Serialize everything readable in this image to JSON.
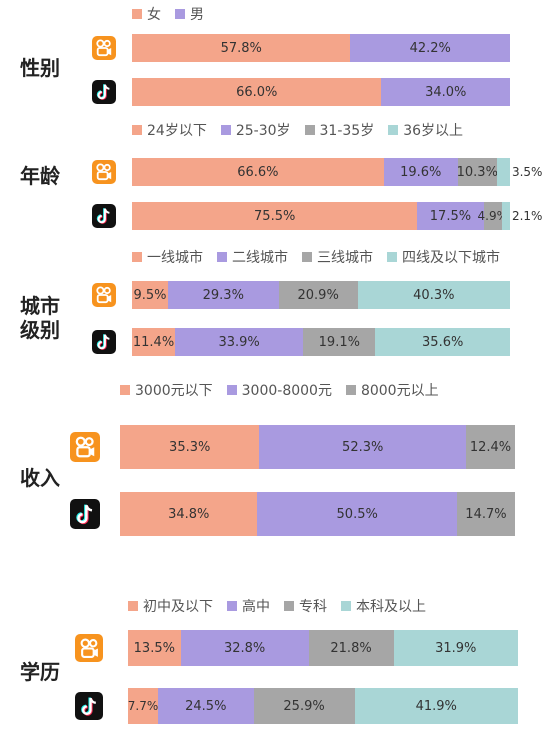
{
  "chart_data": [
    {
      "type": "bar",
      "orientation": "horizontal-stacked-100",
      "title": "性别",
      "categories": [
        "快手",
        "抖音"
      ],
      "colors": [
        "#f4a58a",
        "#a99ae0"
      ],
      "series": [
        {
          "name": "女",
          "values": [
            57.8,
            66.0
          ],
          "labels": [
            "57.8%",
            "66.0%"
          ]
        },
        {
          "name": "男",
          "values": [
            42.2,
            34.0
          ],
          "labels": [
            "42.2%",
            "34.0%"
          ]
        }
      ]
    },
    {
      "type": "bar",
      "orientation": "horizontal-stacked-100",
      "title": "年龄",
      "categories": [
        "快手",
        "抖音"
      ],
      "colors": [
        "#f4a58a",
        "#a99ae0",
        "#a6a6a6",
        "#a9d6d6"
      ],
      "series": [
        {
          "name": "24岁以下",
          "values": [
            66.6,
            75.5
          ],
          "labels": [
            "66.6%",
            "75.5%"
          ]
        },
        {
          "name": "25-30岁",
          "values": [
            19.6,
            17.5
          ],
          "labels": [
            "19.6%",
            "17.5%"
          ]
        },
        {
          "name": "31-35岁",
          "values": [
            10.3,
            4.9
          ],
          "labels": [
            "10.3%",
            "4.9%"
          ]
        },
        {
          "name": "36岁以上",
          "values": [
            3.5,
            2.1
          ],
          "labels": [
            "3.5%",
            "2.1%"
          ]
        }
      ]
    },
    {
      "type": "bar",
      "orientation": "horizontal-stacked-100",
      "title": "城市级别",
      "categories": [
        "快手",
        "抖音"
      ],
      "colors": [
        "#f4a58a",
        "#a99ae0",
        "#a6a6a6",
        "#a9d6d6"
      ],
      "series": [
        {
          "name": "一线城市",
          "values": [
            9.5,
            11.4
          ],
          "labels": [
            "9.5%",
            "11.4%"
          ]
        },
        {
          "name": "二线城市",
          "values": [
            29.3,
            33.9
          ],
          "labels": [
            "29.3%",
            "33.9%"
          ]
        },
        {
          "name": "三线城市",
          "values": [
            20.9,
            19.1
          ],
          "labels": [
            "20.9%",
            "19.1%"
          ]
        },
        {
          "name": "四线及以下城市",
          "values": [
            40.3,
            35.6
          ],
          "labels": [
            "40.3%",
            "35.6%"
          ]
        }
      ]
    },
    {
      "type": "bar",
      "orientation": "horizontal-stacked-100",
      "title": "收入",
      "categories": [
        "快手",
        "抖音"
      ],
      "colors": [
        "#f4a58a",
        "#a99ae0",
        "#a6a6a6"
      ],
      "series": [
        {
          "name": "3000元以下",
          "values": [
            35.3,
            34.8
          ],
          "labels": [
            "35.3%",
            "34.8%"
          ]
        },
        {
          "name": "3000-8000元",
          "values": [
            52.3,
            50.5
          ],
          "labels": [
            "52.3%",
            "50.5%"
          ]
        },
        {
          "name": "8000元以上",
          "values": [
            12.4,
            14.7
          ],
          "labels": [
            "12.4%",
            "14.7%"
          ]
        }
      ]
    },
    {
      "type": "bar",
      "orientation": "horizontal-stacked-100",
      "title": "学历",
      "categories": [
        "快手",
        "抖音"
      ],
      "colors": [
        "#f4a58a",
        "#a99ae0",
        "#a6a6a6",
        "#a9d6d6"
      ],
      "series": [
        {
          "name": "初中及以下",
          "values": [
            13.5,
            7.7
          ],
          "labels": [
            "13.5%",
            "7.7%"
          ]
        },
        {
          "name": "高中",
          "values": [
            32.8,
            24.5
          ],
          "labels": [
            "32.8%",
            "24.5%"
          ]
        },
        {
          "name": "专科",
          "values": [
            21.8,
            25.9
          ],
          "labels": [
            "21.8%",
            "25.9%"
          ]
        },
        {
          "name": "本科及以上",
          "values": [
            31.9,
            41.9
          ],
          "labels": [
            "31.9%",
            "41.9%"
          ]
        }
      ]
    }
  ]
}
